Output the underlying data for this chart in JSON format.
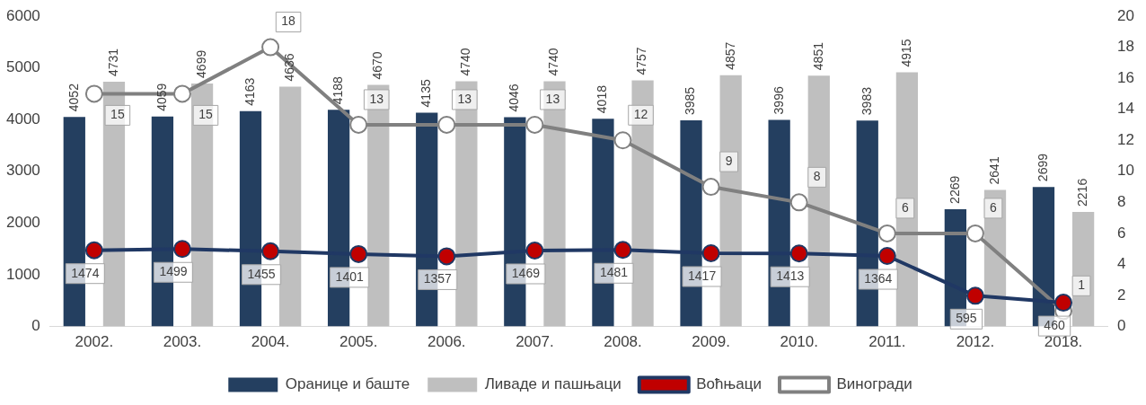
{
  "chart_data": {
    "type": "bar",
    "categories": [
      "2002.",
      "2003.",
      "2004.",
      "2005.",
      "2006.",
      "2007.",
      "2008.",
      "2009.",
      "2010.",
      "2011.",
      "2012.",
      "2018."
    ],
    "series": [
      {
        "name": "Оранице и баште",
        "color": "#243f60",
        "values": [
          4052,
          4059,
          4163,
          4188,
          4135,
          4046,
          4018,
          3985,
          3996,
          3983,
          2269,
          2699
        ]
      },
      {
        "name": "Ливаде и пашњаци",
        "color": "#bfbfbf",
        "values": [
          4731,
          4699,
          4636,
          4670,
          4740,
          4740,
          4757,
          4857,
          4851,
          4915,
          2641,
          2216
        ]
      },
      {
        "name": "Воћњаци",
        "type": "line",
        "color": "#203864",
        "values": [
          1474,
          1499,
          1455,
          1401,
          1357,
          1469,
          1481,
          1417,
          1413,
          1364,
          595,
          460
        ]
      },
      {
        "name": "Виногради",
        "type": "line",
        "axis": "y2",
        "color": "#808080",
        "values": [
          15,
          15,
          18,
          13,
          13,
          13,
          12,
          9,
          8,
          6,
          6,
          1
        ]
      }
    ],
    "ylim": [
      0,
      6000
    ],
    "yticks": [
      0,
      1000,
      2000,
      3000,
      4000,
      5000,
      6000
    ],
    "y2lim": [
      0,
      20
    ],
    "y2ticks": [
      0,
      2,
      4,
      6,
      8,
      10,
      12,
      14,
      16,
      18,
      20
    ],
    "grid": false,
    "legend": "bottom",
    "marker": "circle",
    "data_labels": true
  }
}
